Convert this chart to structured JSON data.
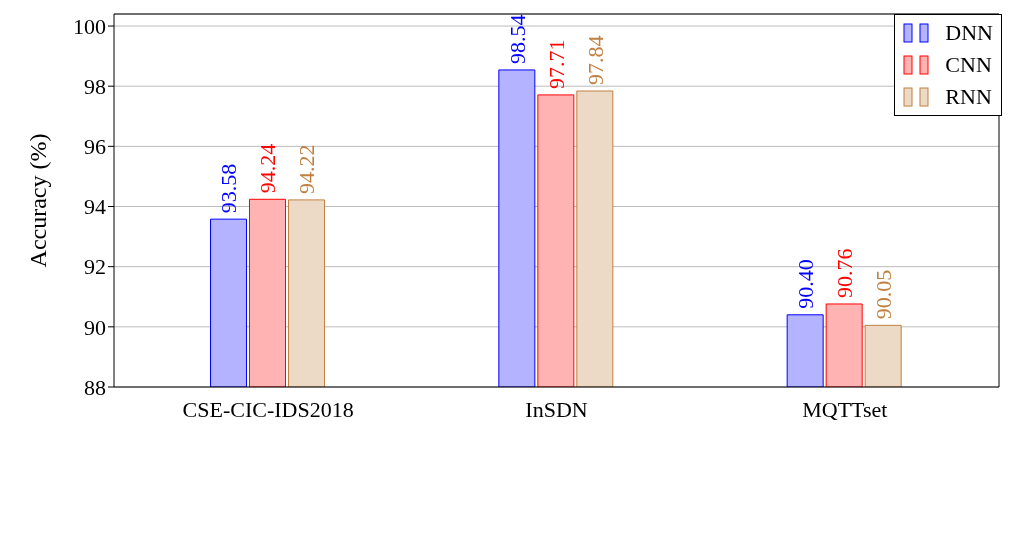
{
  "chart_data": {
    "type": "bar",
    "ylabel": "Accuracy (%)",
    "categories": [
      "CSE-CIC-IDS2018",
      "InSDN",
      "MQTTset"
    ],
    "series": [
      {
        "name": "DNN",
        "color": "#b3b3ff",
        "values": [
          93.58,
          98.54,
          90.4
        ],
        "value_labels": [
          "93.58",
          "98.54",
          "90.40"
        ]
      },
      {
        "name": "CNN",
        "color": "#ffb3b3",
        "values": [
          94.24,
          97.71,
          90.76
        ],
        "value_labels": [
          "94.24",
          "97.71",
          "90.76"
        ]
      },
      {
        "name": "RNN",
        "color": "#ecd9c6",
        "values": [
          94.22,
          97.84,
          90.05
        ],
        "value_labels": [
          "94.22",
          "97.84",
          "90.05"
        ]
      }
    ],
    "ylim": [
      88,
      100.4
    ],
    "yticks": [
      88,
      90,
      92,
      94,
      96,
      98,
      100
    ],
    "grid": "y",
    "legend": "top right"
  }
}
